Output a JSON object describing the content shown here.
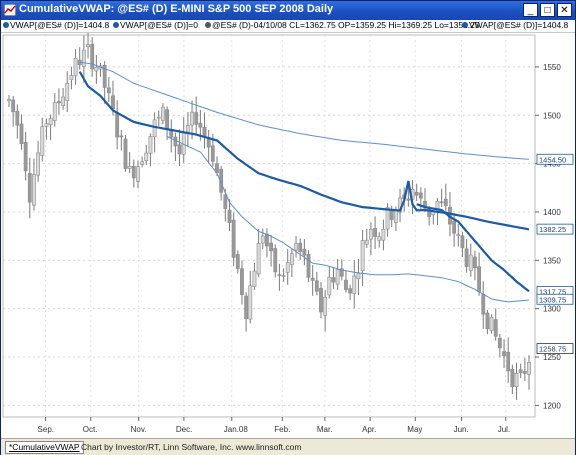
{
  "window": {
    "title": "CumulativeVWAP: @ES# (D) E-MINI S&P 500 SEP 2008 Daily",
    "controls": [
      "_",
      "□",
      "✕"
    ]
  },
  "legend": {
    "item1": "VWAP[@ES# (D)]=1404.8",
    "item2": "VWAP[@ES# (D)]=0",
    "item3": "@ES# (D)-04/10/08 CL=1362.75 OP=1359.25 Hi=1369.25 Lo=1351.25",
    "item4": "VWAP[@ES# (D)]=1404.8",
    "marker_icon": "circle-marker-icon"
  },
  "colors": {
    "vwap_light": "#5b8fd0",
    "vwap_dark": "#1b5aa8",
    "candle": "#8c8c8c",
    "titlebar": "#1d58c8"
  },
  "chart_data": {
    "type": "candlestick",
    "symbol": "@ES# (D)",
    "x_labels": [
      "Sep.",
      "Oct.",
      "Nov.",
      "Dec.",
      "Jan.08",
      "Feb.",
      "Mar.",
      "Apr.",
      "May",
      "Jun.",
      "Jul."
    ],
    "y_ticks": [
      1550,
      1500,
      1450,
      1400,
      1350,
      1300,
      1250,
      1200
    ],
    "ylim": [
      1188,
      1583
    ],
    "grid": true,
    "price_path_keypoints": [
      [
        0,
        1515
      ],
      [
        3,
        1480
      ],
      [
        5,
        1420
      ],
      [
        7,
        1460
      ],
      [
        9,
        1495
      ],
      [
        11,
        1505
      ],
      [
        13,
        1525
      ],
      [
        15,
        1545
      ],
      [
        17,
        1558
      ],
      [
        19,
        1565
      ],
      [
        21,
        1552
      ],
      [
        23,
        1530
      ],
      [
        25,
        1500
      ],
      [
        27,
        1470
      ],
      [
        29,
        1440
      ],
      [
        31,
        1450
      ],
      [
        33,
        1470
      ],
      [
        35,
        1490
      ],
      [
        37,
        1500
      ],
      [
        39,
        1480
      ],
      [
        41,
        1460
      ],
      [
        43,
        1485
      ],
      [
        45,
        1500
      ],
      [
        47,
        1480
      ],
      [
        49,
        1460
      ],
      [
        51,
        1420
      ],
      [
        53,
        1380
      ],
      [
        55,
        1340
      ],
      [
        57,
        1300
      ],
      [
        59,
        1345
      ],
      [
        61,
        1380
      ],
      [
        63,
        1350
      ],
      [
        65,
        1330
      ],
      [
        67,
        1345
      ],
      [
        69,
        1365
      ],
      [
        71,
        1350
      ],
      [
        73,
        1320
      ],
      [
        75,
        1300
      ],
      [
        77,
        1330
      ],
      [
        79,
        1340
      ],
      [
        81,
        1320
      ],
      [
        83,
        1330
      ],
      [
        85,
        1365
      ],
      [
        87,
        1385
      ],
      [
        89,
        1380
      ],
      [
        91,
        1395
      ],
      [
        93,
        1405
      ],
      [
        95,
        1410
      ],
      [
        97,
        1425
      ],
      [
        99,
        1410
      ],
      [
        101,
        1400
      ],
      [
        103,
        1410
      ],
      [
        105,
        1400
      ],
      [
        107,
        1380
      ],
      [
        109,
        1360
      ],
      [
        111,
        1345
      ],
      [
        113,
        1320
      ],
      [
        115,
        1290
      ],
      [
        117,
        1270
      ],
      [
        119,
        1250
      ],
      [
        121,
        1230
      ],
      [
        123,
        1225
      ],
      [
        125,
        1250
      ]
    ],
    "series": [
      {
        "name": "VWAP[@ES# (D)]",
        "style": "thick",
        "end_value": 1382.25,
        "keypoints": [
          [
            17,
            1545
          ],
          [
            19,
            1530
          ],
          [
            22,
            1520
          ],
          [
            25,
            1505
          ],
          [
            30,
            1493
          ],
          [
            35,
            1488
          ],
          [
            40,
            1484
          ],
          [
            45,
            1480
          ],
          [
            50,
            1474
          ],
          [
            55,
            1455
          ],
          [
            60,
            1440
          ],
          [
            65,
            1433
          ],
          [
            70,
            1427
          ],
          [
            75,
            1418
          ],
          [
            80,
            1410
          ],
          [
            85,
            1405
          ],
          [
            90,
            1403
          ],
          [
            95,
            1401
          ],
          [
            100,
            1402
          ],
          [
            105,
            1399
          ],
          [
            110,
            1395
          ],
          [
            115,
            1390
          ],
          [
            120,
            1386
          ],
          [
            125,
            1382
          ]
        ],
        "spike": [
          [
            95,
            1412
          ],
          [
            96,
            1432
          ],
          [
            97,
            1408
          ]
        ]
      },
      {
        "name": "VWAP[@ES# (D)]",
        "style": "thin",
        "end_value": 1454.5,
        "keypoints": [
          [
            17,
            1555
          ],
          [
            20,
            1553
          ],
          [
            25,
            1545
          ],
          [
            30,
            1533
          ],
          [
            40,
            1518
          ],
          [
            50,
            1503
          ],
          [
            60,
            1490
          ],
          [
            70,
            1481
          ],
          [
            80,
            1474
          ],
          [
            90,
            1470
          ],
          [
            100,
            1465
          ],
          [
            110,
            1460
          ],
          [
            120,
            1456
          ],
          [
            125,
            1454.5
          ]
        ]
      },
      {
        "name": "VWAP[@ES# (D)]",
        "style": "thick",
        "end_value": 1317.75,
        "keypoints": [
          [
            98,
            1408
          ],
          [
            100,
            1405
          ],
          [
            104,
            1402
          ],
          [
            106,
            1395
          ],
          [
            108,
            1390
          ],
          [
            110,
            1380
          ],
          [
            113,
            1365
          ],
          [
            116,
            1350
          ],
          [
            119,
            1340
          ],
          [
            122,
            1328
          ],
          [
            125,
            1318
          ]
        ]
      },
      {
        "name": "VWAP[@ES# (D)]",
        "style": "thin",
        "end_value": 1309.75,
        "keypoints": [
          [
            38,
            1478
          ],
          [
            42,
            1470
          ],
          [
            46,
            1462
          ],
          [
            50,
            1440
          ],
          [
            53,
            1410
          ],
          [
            56,
            1395
          ],
          [
            60,
            1380
          ],
          [
            63,
            1375
          ],
          [
            66,
            1368
          ],
          [
            70,
            1356
          ],
          [
            73,
            1347
          ],
          [
            76,
            1345
          ],
          [
            80,
            1340
          ],
          [
            84,
            1337
          ],
          [
            88,
            1335
          ],
          [
            92,
            1335
          ],
          [
            96,
            1336
          ],
          [
            100,
            1334
          ],
          [
            104,
            1332
          ],
          [
            108,
            1328
          ],
          [
            112,
            1320
          ],
          [
            116,
            1310
          ],
          [
            120,
            1307
          ],
          [
            125,
            1309
          ]
        ]
      }
    ],
    "price_labels": [
      {
        "value": 1454.5,
        "text": "1454.50",
        "fill": "#ffffff"
      },
      {
        "value": 1382.25,
        "text": "1382.25",
        "fill": "#ffffff"
      },
      {
        "value": 1317.75,
        "text": "1317.75",
        "fill": "#ffffff"
      },
      {
        "value": 1309.75,
        "text": "1309.75",
        "fill": "#ffffff"
      },
      {
        "value": 1258.75,
        "text": "1258.75",
        "fill": "#ffffff",
        "boxed": true
      }
    ]
  },
  "status": {
    "tab": "*CumulativeVWAP",
    "credit": "Chart by Investor/RT, Linn Software, Inc. www.linnsoft.com"
  }
}
